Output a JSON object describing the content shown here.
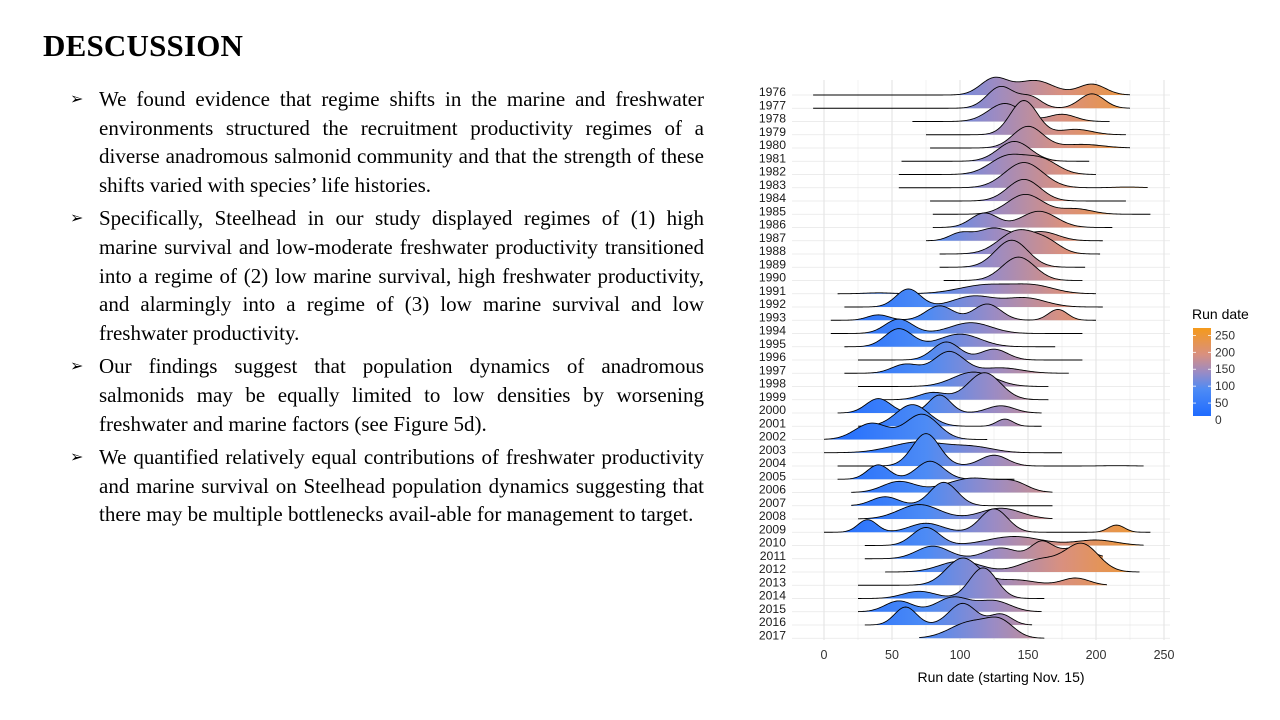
{
  "slide": {
    "title": "DESCUSSION",
    "bullet_marker": "➢",
    "bullets": [
      "We found evidence that regime shifts in the marine and freshwater environments structured the recruitment productivity regimes of a diverse anadromous salmonid community and that the strength of these shifts varied with species’ life histories.",
      "Specifically, Steelhead in our study displayed regimes of (1) high marine survival and low-moderate freshwater productivity transitioned into a regime of (2) low marine survival, high freshwater productivity, and alarmingly into a regime of (3) low marine survival and low freshwater productivity.",
      "Our findings suggest that population dynamics of anadromous salmonids may be equally limited to low densities by worsening freshwater and marine factors (see Figure 5d).",
      "We quantified relatively equal contributions of freshwater productivity and marine survival on Steelhead population dynamics suggesting that there may be multiple bottlenecks avail-able for management to target."
    ]
  },
  "chart_data": {
    "type": "ridgeline",
    "title": "",
    "xlabel": "Run date (starting Nov. 15)",
    "ylabel": "",
    "xlim": [
      -10,
      250
    ],
    "x_ticks": [
      0,
      50,
      100,
      150,
      200,
      250
    ],
    "grid": true,
    "legend": {
      "title": "Run date",
      "position": "right",
      "ticks": [
        250,
        200,
        150,
        100,
        50,
        0
      ],
      "color_stops": [
        {
          "value": 0,
          "color": "#1F6BFF"
        },
        {
          "value": 75,
          "color": "#4D8BF5"
        },
        {
          "value": 125,
          "color": "#9B8BC4"
        },
        {
          "value": 175,
          "color": "#D9907F"
        },
        {
          "value": 250,
          "color": "#F59A1B"
        }
      ]
    },
    "series": [
      {
        "year": "1976",
        "range": [
          -8,
          225
        ],
        "peaks": [
          [
            125,
            0.9,
            10
          ],
          [
            155,
            0.8,
            14
          ],
          [
            197,
            0.6,
            10
          ]
        ]
      },
      {
        "year": "1977",
        "range": [
          -8,
          225
        ],
        "peaks": [
          [
            130,
            1.2,
            10
          ],
          [
            152,
            0.6,
            8
          ],
          [
            197,
            0.8,
            9
          ]
        ]
      },
      {
        "year": "1978",
        "range": [
          65,
          210
        ],
        "peaks": [
          [
            133,
            1.0,
            12
          ],
          [
            175,
            0.4,
            10
          ]
        ]
      },
      {
        "year": "1979",
        "range": [
          75,
          222
        ],
        "peaks": [
          [
            147,
            1.9,
            10
          ],
          [
            185,
            0.3,
            12
          ]
        ]
      },
      {
        "year": "1980",
        "range": [
          78,
          225
        ],
        "peaks": [
          [
            150,
            1.2,
            11
          ],
          [
            190,
            0.2,
            15
          ]
        ]
      },
      {
        "year": "1981",
        "range": [
          57,
          195
        ],
        "peaks": [
          [
            140,
            1.1,
            12
          ]
        ]
      },
      {
        "year": "1982",
        "range": [
          55,
          200
        ],
        "peaks": [
          [
            135,
            1.0,
            13
          ],
          [
            160,
            0.8,
            12
          ]
        ]
      },
      {
        "year": "1983",
        "range": [
          55,
          238
        ],
        "peaks": [
          [
            147,
            1.4,
            14
          ],
          [
            223,
            0.04,
            10
          ]
        ]
      },
      {
        "year": "1984",
        "range": [
          78,
          222
        ],
        "peaks": [
          [
            147,
            1.2,
            12
          ]
        ]
      },
      {
        "year": "1985",
        "range": [
          80,
          240
        ],
        "peaks": [
          [
            148,
            1.1,
            13
          ],
          [
            185,
            0.3,
            12
          ]
        ]
      },
      {
        "year": "1986",
        "range": [
          80,
          212
        ],
        "peaks": [
          [
            118,
            0.8,
            10
          ],
          [
            158,
            0.9,
            13
          ]
        ]
      },
      {
        "year": "1987",
        "range": [
          75,
          205
        ],
        "peaks": [
          [
            100,
            0.4,
            8
          ],
          [
            125,
            0.7,
            12
          ],
          [
            160,
            0.5,
            12
          ]
        ]
      },
      {
        "year": "1988",
        "range": [
          85,
          203
        ],
        "peaks": [
          [
            143,
            1.3,
            14
          ],
          [
            165,
            0.5,
            10
          ]
        ]
      },
      {
        "year": "1989",
        "range": [
          85,
          192
        ],
        "peaks": [
          [
            138,
            1.5,
            12
          ]
        ]
      },
      {
        "year": "1990",
        "range": [
          88,
          190
        ],
        "peaks": [
          [
            143,
            1.3,
            12
          ]
        ]
      },
      {
        "year": "1991",
        "range": [
          10,
          200
        ],
        "peaks": [
          [
            40,
            0.05,
            10
          ],
          [
            120,
            0.5,
            20
          ],
          [
            155,
            0.4,
            15
          ]
        ]
      },
      {
        "year": "1992",
        "range": [
          15,
          205
        ],
        "peaks": [
          [
            62,
            1.0,
            9
          ],
          [
            110,
            0.6,
            15
          ],
          [
            148,
            0.5,
            15
          ]
        ]
      },
      {
        "year": "1993",
        "range": [
          5,
          200
        ],
        "peaks": [
          [
            40,
            0.3,
            8
          ],
          [
            85,
            0.8,
            10
          ],
          [
            120,
            0.9,
            10
          ],
          [
            172,
            0.6,
            7
          ]
        ]
      },
      {
        "year": "1994",
        "range": [
          5,
          190
        ],
        "peaks": [
          [
            55,
            0.8,
            10
          ],
          [
            108,
            0.6,
            15
          ]
        ]
      },
      {
        "year": "1995",
        "range": [
          15,
          170
        ],
        "peaks": [
          [
            55,
            1.0,
            10
          ],
          [
            100,
            0.7,
            15
          ]
        ]
      },
      {
        "year": "1996",
        "range": [
          25,
          190
        ],
        "peaks": [
          [
            90,
            1.0,
            10
          ],
          [
            125,
            0.6,
            10
          ]
        ]
      },
      {
        "year": "1997",
        "range": [
          15,
          180
        ],
        "peaks": [
          [
            60,
            0.5,
            10
          ],
          [
            92,
            1.2,
            11
          ],
          [
            130,
            0.3,
            15
          ]
        ]
      },
      {
        "year": "1998",
        "range": [
          25,
          165
        ],
        "peaks": [
          [
            110,
            0.8,
            15
          ]
        ]
      },
      {
        "year": "1999",
        "range": [
          40,
          165
        ],
        "peaks": [
          [
            80,
            0.4,
            10
          ],
          [
            118,
            1.5,
            12
          ]
        ]
      },
      {
        "year": "2000",
        "range": [
          10,
          160
        ],
        "peaks": [
          [
            40,
            0.8,
            9
          ],
          [
            85,
            1.0,
            8
          ],
          [
            130,
            0.4,
            10
          ]
        ]
      },
      {
        "year": "2001",
        "range": [
          25,
          160
        ],
        "peaks": [
          [
            65,
            1.2,
            12
          ],
          [
            133,
            0.4,
            6
          ]
        ]
      },
      {
        "year": "2002",
        "range": [
          0,
          120
        ],
        "peaks": [
          [
            35,
            0.9,
            12
          ],
          [
            72,
            1.4,
            12
          ]
        ]
      },
      {
        "year": "2003",
        "range": [
          0,
          175
        ],
        "peaks": [
          [
            70,
            0.6,
            20
          ],
          [
            110,
            0.3,
            15
          ]
        ]
      },
      {
        "year": "2004",
        "range": [
          10,
          235
        ],
        "peaks": [
          [
            75,
            1.8,
            10
          ],
          [
            125,
            0.6,
            10
          ],
          [
            215,
            0.02,
            10
          ]
        ]
      },
      {
        "year": "2005",
        "range": [
          10,
          140
        ],
        "peaks": [
          [
            40,
            0.8,
            8
          ],
          [
            78,
            1.0,
            10
          ]
        ]
      },
      {
        "year": "2006",
        "range": [
          20,
          168
        ],
        "peaks": [
          [
            55,
            0.6,
            12
          ],
          [
            110,
            0.8,
            20
          ],
          [
            140,
            0.4,
            10
          ]
        ]
      },
      {
        "year": "2007",
        "range": [
          20,
          168
        ],
        "peaks": [
          [
            45,
            0.5,
            10
          ],
          [
            88,
            1.3,
            10
          ]
        ]
      },
      {
        "year": "2008",
        "range": [
          25,
          168
        ],
        "peaks": [
          [
            70,
            0.8,
            15
          ],
          [
            130,
            0.6,
            15
          ]
        ]
      },
      {
        "year": "2009",
        "range": [
          0,
          240
        ],
        "peaks": [
          [
            32,
            0.7,
            7
          ],
          [
            75,
            0.5,
            12
          ],
          [
            125,
            1.3,
            10
          ],
          [
            215,
            0.4,
            6
          ]
        ]
      },
      {
        "year": "2010",
        "range": [
          30,
          235
        ],
        "peaks": [
          [
            75,
            1.0,
            10
          ],
          [
            140,
            0.5,
            20
          ],
          [
            200,
            0.3,
            15
          ]
        ]
      },
      {
        "year": "2011",
        "range": [
          30,
          205
        ],
        "peaks": [
          [
            80,
            0.7,
            12
          ],
          [
            130,
            0.6,
            12
          ],
          [
            160,
            0.9,
            8
          ],
          [
            185,
            0.6,
            12
          ]
        ]
      },
      {
        "year": "2012",
        "range": [
          45,
          232
        ],
        "peaks": [
          [
            100,
            0.6,
            15
          ],
          [
            160,
            0.7,
            15
          ],
          [
            190,
            1.5,
            12
          ]
        ]
      },
      {
        "year": "2013",
        "range": [
          25,
          208
        ],
        "peaks": [
          [
            102,
            1.5,
            12
          ],
          [
            140,
            0.3,
            15
          ],
          [
            185,
            0.4,
            10
          ]
        ]
      },
      {
        "year": "2014",
        "range": [
          25,
          162
        ],
        "peaks": [
          [
            70,
            0.4,
            12
          ],
          [
            117,
            1.7,
            10
          ]
        ]
      },
      {
        "year": "2015",
        "range": [
          25,
          160
        ],
        "peaks": [
          [
            55,
            0.6,
            10
          ],
          [
            95,
            0.8,
            12
          ],
          [
            125,
            0.6,
            12
          ]
        ]
      },
      {
        "year": "2016",
        "range": [
          30,
          153
        ],
        "peaks": [
          [
            60,
            1.0,
            8
          ],
          [
            102,
            1.2,
            10
          ],
          [
            130,
            0.6,
            8
          ]
        ]
      },
      {
        "year": "2017",
        "range": [
          70,
          162
        ],
        "peaks": [
          [
            108,
            0.9,
            15
          ],
          [
            130,
            0.8,
            10
          ]
        ]
      }
    ]
  }
}
